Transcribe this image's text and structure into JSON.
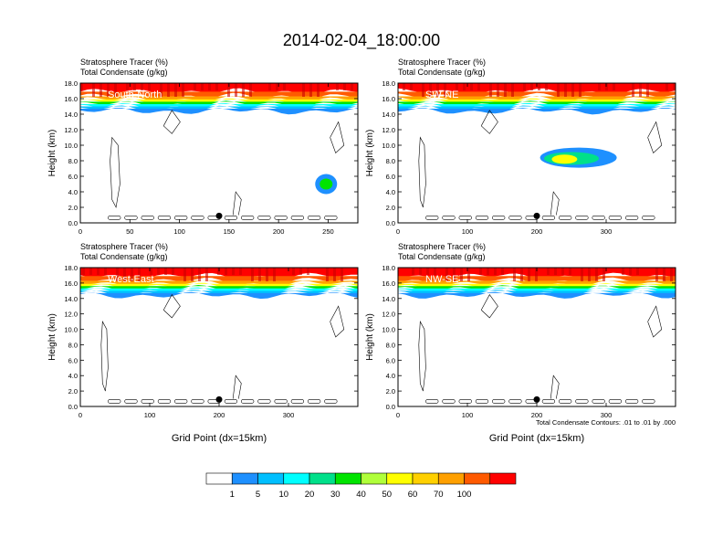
{
  "title": "2014-02-04_18:00:00",
  "chart_data": {
    "type": "heatmap",
    "title": "2014-02-04_18:00:00",
    "panel_header_line1": "Stratosphere Tracer   (%)",
    "panel_header_line2": "Total Condensate   (g/kg)",
    "ylabel": "Height (km)",
    "xlabel": "Grid Point (dx=15km)",
    "ylim": [
      0,
      18
    ],
    "yticks": [
      "0.0",
      "2.0",
      "4.0",
      "6.0",
      "8.0",
      "10.0",
      "12.0",
      "14.0",
      "16.0",
      "18.0"
    ],
    "contour_note": "Total Condensate Contours: .01 to .01 by .000",
    "colorbar": {
      "labels": [
        "1",
        "5",
        "10",
        "20",
        "30",
        "40",
        "50",
        "60",
        "70",
        "100"
      ],
      "colors": [
        "#ffffff",
        "#1e90ff",
        "#00bfff",
        "#00ffff",
        "#00e08a",
        "#00e400",
        "#b0ff3a",
        "#ffff00",
        "#ffd000",
        "#ffa000",
        "#ff5a00",
        "#ff0000"
      ]
    },
    "panels": [
      {
        "name": "South-North",
        "xlim": [
          0,
          280
        ],
        "xticks": [
          "0",
          "50",
          "100",
          "150",
          "200",
          "250"
        ],
        "xtick_values": [
          0,
          50,
          100,
          150,
          200,
          250
        ],
        "marker_x": 140,
        "has_xlabel": false
      },
      {
        "name": "SW-NE",
        "xlim": [
          0,
          400
        ],
        "xticks": [
          "0",
          "100",
          "200",
          "300"
        ],
        "xtick_values": [
          0,
          100,
          200,
          300
        ],
        "marker_x": 200,
        "has_xlabel": false
      },
      {
        "name": "West-East",
        "xlim": [
          0,
          400
        ],
        "xticks": [
          "0",
          "100",
          "200",
          "300"
        ],
        "xtick_values": [
          0,
          100,
          200,
          300
        ],
        "marker_x": 200,
        "has_xlabel": true
      },
      {
        "name": "NW-SE",
        "xlim": [
          0,
          400
        ],
        "xticks": [
          "0",
          "100",
          "200",
          "300"
        ],
        "xtick_values": [
          0,
          100,
          200,
          300
        ],
        "marker_x": 200,
        "has_xlabel": true
      }
    ]
  }
}
